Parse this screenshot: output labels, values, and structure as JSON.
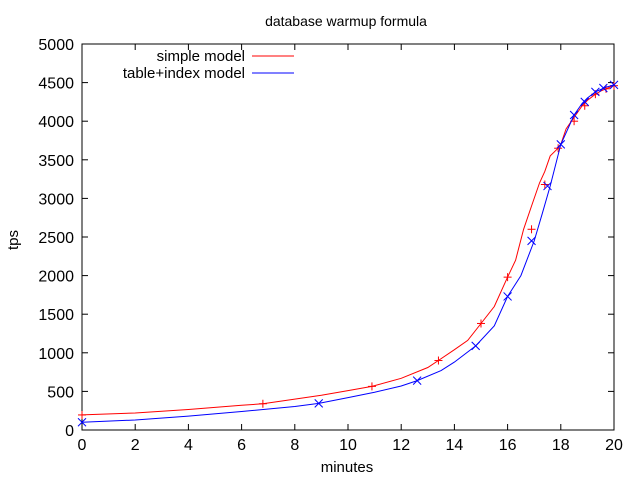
{
  "chart_data": {
    "type": "line",
    "title": "database warmup formula",
    "xlabel": "minutes",
    "ylabel": "tps",
    "xlim": [
      0,
      20
    ],
    "ylim": [
      0,
      5000
    ],
    "xticks": [
      "0",
      "2",
      "4",
      "6",
      "8",
      "10",
      "12",
      "14",
      "16",
      "18",
      "20"
    ],
    "yticks": [
      "0",
      "500",
      "1000",
      "1500",
      "2000",
      "2500",
      "3000",
      "3500",
      "4000",
      "4500",
      "5000"
    ],
    "grid": false,
    "legend_position": "top-left",
    "series": [
      {
        "name": "simple model",
        "color": "#ff0000",
        "marker": "plus",
        "x": [
          0,
          2,
          4,
          6,
          6.8,
          8,
          9,
          10,
          10.9,
          12,
          13,
          13.4,
          14,
          14.5,
          15,
          15.5,
          16,
          16.3,
          16.6,
          16.9,
          17.2,
          17.4,
          17.6,
          17.9,
          18,
          18.2,
          18.5,
          18.8,
          19,
          19.3,
          19.5,
          19.7,
          19.9,
          20
        ],
        "y": [
          195,
          220,
          265,
          320,
          340,
          400,
          450,
          510,
          565,
          670,
          810,
          900,
          1040,
          1160,
          1380,
          1600,
          1980,
          2200,
          2600,
          2900,
          3200,
          3350,
          3550,
          3650,
          3700,
          3900,
          4050,
          4200,
          4270,
          4350,
          4390,
          4420,
          4450,
          4460
        ],
        "marker_x": [
          0,
          6.8,
          10.9,
          13.4,
          15,
          16,
          16.9,
          17.4,
          17.9,
          18.5,
          18.9,
          19.3,
          19.7,
          20
        ],
        "marker_y": [
          195,
          340,
          565,
          900,
          1380,
          1980,
          2600,
          3180,
          3650,
          4000,
          4200,
          4350,
          4420,
          4460
        ]
      },
      {
        "name": "table+index model",
        "color": "#0000ff",
        "marker": "cross",
        "x": [
          0,
          2,
          4,
          6,
          8,
          8.9,
          10,
          11,
          12,
          12.6,
          13.5,
          14,
          14.8,
          15.5,
          16,
          16.5,
          17,
          17.3,
          17.6,
          18,
          18.2,
          18.5,
          18.8,
          19,
          19.3,
          19.5,
          19.7,
          20
        ],
        "y": [
          100,
          130,
          180,
          240,
          305,
          345,
          420,
          490,
          570,
          640,
          770,
          880,
          1090,
          1350,
          1730,
          2000,
          2450,
          2800,
          3160,
          3700,
          3850,
          4080,
          4230,
          4300,
          4380,
          4410,
          4440,
          4470
        ],
        "marker_x": [
          0,
          8.9,
          12.6,
          14.8,
          16,
          16.9,
          17.5,
          18,
          18.5,
          18.9,
          19.3,
          19.6,
          20
        ],
        "marker_y": [
          100,
          345,
          640,
          1090,
          1730,
          2450,
          3160,
          3700,
          4080,
          4250,
          4380,
          4430,
          4470
        ]
      }
    ]
  }
}
